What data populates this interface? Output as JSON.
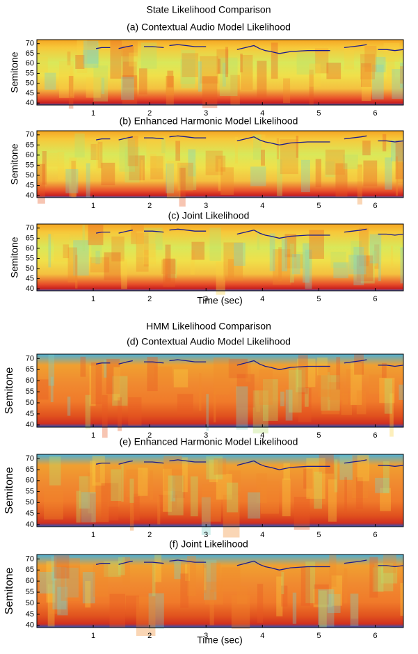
{
  "figure_titles": [
    "State Likelihood Comparison",
    "HMM Likelihood Comparison"
  ],
  "chart_data": [
    {
      "type": "heatmap",
      "title": "(a) Contextual Audio Model Likelihood",
      "ylabel": "Semitone",
      "xlim": [
        0,
        6.5
      ],
      "ylim": [
        39,
        72
      ],
      "xticks": [
        1,
        2,
        3,
        4,
        5,
        6
      ],
      "yticks": [
        40,
        45,
        50,
        55,
        60,
        65,
        70
      ],
      "line": {
        "color": "#1a1a8c",
        "x": [
          1.05,
          1.15,
          1.3,
          null,
          1.45,
          1.6,
          1.7,
          null,
          1.9,
          2.05,
          2.25,
          null,
          2.35,
          2.5,
          2.65,
          2.8,
          3.0,
          null,
          3.55,
          3.7,
          3.85,
          3.95,
          4.05,
          4.15,
          4.3,
          4.5,
          4.8,
          5.2,
          null,
          5.45,
          5.6,
          5.75,
          5.85,
          null,
          6.05,
          6.2,
          6.35,
          6.5
        ],
        "values": [
          67.5,
          68,
          68,
          null,
          67.5,
          68.5,
          69,
          null,
          68.5,
          68.5,
          68,
          null,
          69,
          69.5,
          69,
          68.5,
          68.5,
          null,
          67,
          68,
          69,
          67.5,
          66.5,
          66,
          65,
          66,
          66.5,
          66.5,
          null,
          68,
          68.5,
          69,
          69.5,
          null,
          67,
          67,
          66.5,
          67
        ]
      }
    },
    {
      "type": "heatmap",
      "title": "(b) Enhanced  Harmonic Model Likelihood",
      "ylabel": "Semitone",
      "xlim": [
        0,
        6.5
      ],
      "ylim": [
        39,
        72
      ],
      "xticks": [
        1,
        2,
        3,
        4,
        5,
        6
      ],
      "yticks": [
        40,
        45,
        50,
        55,
        60,
        65,
        70
      ],
      "line": {
        "color": "#1a1a8c",
        "x": [
          1.05,
          1.15,
          1.3,
          null,
          1.45,
          1.6,
          1.7,
          null,
          1.9,
          2.05,
          2.25,
          null,
          2.35,
          2.5,
          2.65,
          2.8,
          3.0,
          null,
          3.55,
          3.7,
          3.85,
          3.95,
          4.05,
          4.15,
          4.3,
          4.5,
          4.8,
          5.2,
          null,
          5.45,
          5.6,
          5.75,
          5.85,
          null,
          6.05,
          6.2,
          6.35,
          6.5
        ],
        "values": [
          67.5,
          68,
          68,
          null,
          67.5,
          68.5,
          69,
          null,
          68.5,
          68.5,
          68,
          null,
          69,
          69.5,
          69,
          68.5,
          68.5,
          null,
          67,
          68,
          69,
          67.5,
          66.5,
          66,
          65,
          66,
          66.5,
          66.5,
          null,
          68,
          68.5,
          69,
          69.5,
          null,
          67,
          67,
          66.5,
          67
        ]
      }
    },
    {
      "type": "heatmap",
      "title": "(c) Joint Likelihood",
      "ylabel": "Semitone",
      "xlabel": "Time (sec)",
      "xlim": [
        0,
        6.5
      ],
      "ylim": [
        39,
        72
      ],
      "xticks": [
        1,
        2,
        3,
        4,
        5,
        6
      ],
      "yticks": [
        40,
        45,
        50,
        55,
        60,
        65,
        70
      ],
      "line": {
        "color": "#1a1a8c",
        "x": [
          1.05,
          1.15,
          1.3,
          null,
          1.45,
          1.6,
          1.7,
          null,
          1.9,
          2.05,
          2.25,
          null,
          2.35,
          2.5,
          2.65,
          2.8,
          3.0,
          null,
          3.55,
          3.7,
          3.85,
          3.95,
          4.05,
          4.15,
          4.3,
          4.5,
          4.8,
          5.2,
          null,
          5.45,
          5.6,
          5.75,
          5.85,
          null,
          6.05,
          6.2,
          6.35,
          6.5
        ],
        "values": [
          67.5,
          68,
          68,
          null,
          67.5,
          68.5,
          69,
          null,
          68.5,
          68.5,
          68,
          null,
          69,
          69.5,
          69,
          68.5,
          68.5,
          null,
          67,
          68,
          69,
          67.5,
          66.5,
          66,
          65,
          66,
          66.5,
          66.5,
          null,
          68,
          68.5,
          69,
          69.5,
          null,
          67,
          67,
          66.5,
          67
        ]
      }
    },
    {
      "type": "heatmap",
      "title": "(d) Contextual Audio Model Likelihood",
      "ylabel": "Semitone",
      "xlim": [
        0,
        6.5
      ],
      "ylim": [
        39,
        72
      ],
      "xticks": [
        1,
        2,
        3,
        4,
        5,
        6
      ],
      "yticks": [
        40,
        45,
        50,
        55,
        60,
        65,
        70
      ],
      "line": {
        "color": "#1a1a8c",
        "x": [
          1.05,
          1.15,
          1.3,
          null,
          1.45,
          1.6,
          1.7,
          null,
          1.9,
          2.05,
          2.25,
          null,
          2.35,
          2.5,
          2.65,
          2.8,
          3.0,
          null,
          3.55,
          3.7,
          3.85,
          3.95,
          4.05,
          4.15,
          4.3,
          4.5,
          4.8,
          5.2,
          null,
          5.45,
          5.6,
          5.75,
          5.85,
          null,
          6.05,
          6.2,
          6.35,
          6.5
        ],
        "values": [
          67.5,
          68,
          68,
          null,
          67.5,
          68.5,
          69,
          null,
          68.5,
          68.5,
          68,
          null,
          69,
          69.5,
          69,
          68.5,
          68.5,
          null,
          67,
          68,
          69,
          67.5,
          66.5,
          66,
          65,
          66,
          66.5,
          66.5,
          null,
          68,
          68.5,
          69,
          69.5,
          null,
          67,
          67,
          66.5,
          67
        ]
      }
    },
    {
      "type": "heatmap",
      "title": "(e) Enhanced Harmonic Model Likelihood",
      "ylabel": "Semitone",
      "xlim": [
        0,
        6.5
      ],
      "ylim": [
        39,
        72
      ],
      "xticks": [
        1,
        2,
        3,
        4,
        5,
        6
      ],
      "yticks": [
        40,
        45,
        50,
        55,
        60,
        65,
        70
      ],
      "line": {
        "color": "#1a1a8c",
        "x": [
          1.05,
          1.15,
          1.3,
          null,
          1.45,
          1.6,
          1.7,
          null,
          1.9,
          2.05,
          2.25,
          null,
          2.35,
          2.5,
          2.65,
          2.8,
          3.0,
          null,
          3.55,
          3.7,
          3.85,
          3.95,
          4.05,
          4.15,
          4.3,
          4.5,
          4.8,
          5.2,
          null,
          5.45,
          5.6,
          5.75,
          5.85,
          null,
          6.05,
          6.2,
          6.35,
          6.5
        ],
        "values": [
          67.5,
          68,
          68,
          null,
          67.5,
          68.5,
          69,
          null,
          68.5,
          68.5,
          68,
          null,
          69,
          69.5,
          69,
          68.5,
          68.5,
          null,
          67,
          68,
          69,
          67.5,
          66.5,
          66,
          65,
          66,
          66.5,
          66.5,
          null,
          68,
          68.5,
          69,
          69.5,
          null,
          67,
          67,
          66.5,
          67
        ]
      }
    },
    {
      "type": "heatmap",
      "title": "(f) Joint Likelihood",
      "ylabel": "Semitone",
      "xlabel": "Time (sec)",
      "xlim": [
        0,
        6.5
      ],
      "ylim": [
        39,
        72
      ],
      "xticks": [
        1,
        2,
        3,
        4,
        5,
        6
      ],
      "yticks": [
        40,
        45,
        50,
        55,
        60,
        65,
        70
      ],
      "line": {
        "color": "#1a1a8c",
        "x": [
          1.05,
          1.15,
          1.3,
          null,
          1.45,
          1.6,
          1.7,
          null,
          1.9,
          2.05,
          2.25,
          null,
          2.35,
          2.5,
          2.65,
          2.8,
          3.0,
          null,
          3.55,
          3.7,
          3.85,
          3.95,
          4.05,
          4.15,
          4.3,
          4.5,
          4.8,
          5.2,
          null,
          5.45,
          5.6,
          5.75,
          5.85,
          null,
          6.05,
          6.2,
          6.35,
          6.5
        ],
        "values": [
          67.5,
          68,
          68,
          null,
          67.5,
          68.5,
          69,
          null,
          68.5,
          68.5,
          68,
          null,
          69,
          69.5,
          69,
          68.5,
          68.5,
          null,
          67,
          68,
          69,
          67.5,
          66.5,
          66,
          65,
          66,
          66.5,
          66.5,
          null,
          68,
          68.5,
          69,
          69.5,
          null,
          67,
          67,
          66.5,
          67
        ]
      }
    }
  ]
}
